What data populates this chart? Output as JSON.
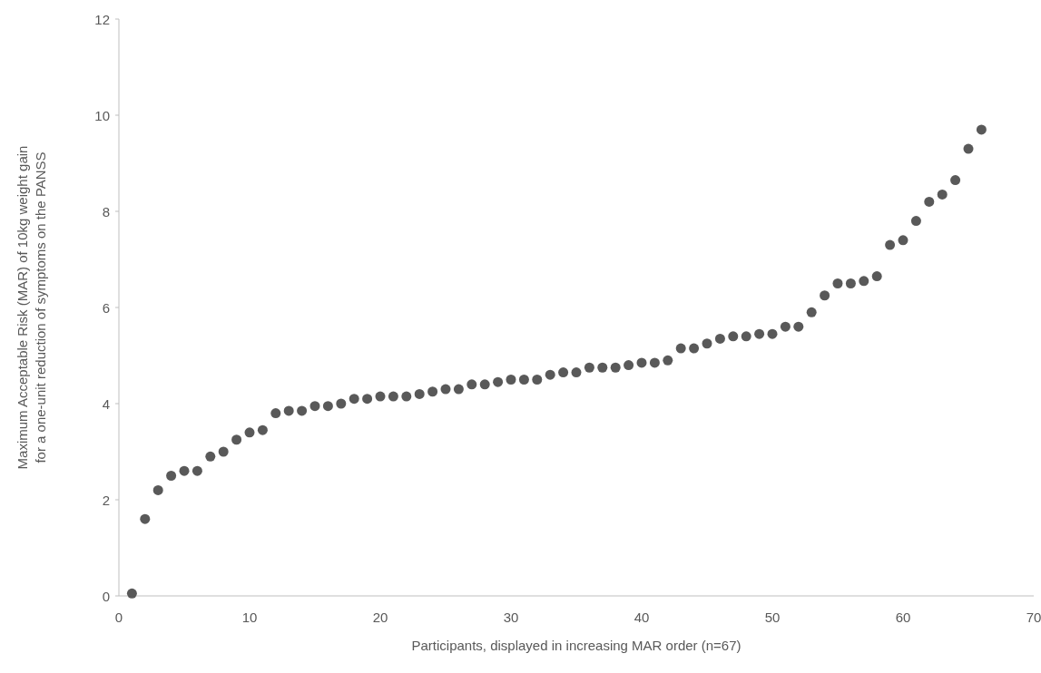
{
  "chart_data": {
    "type": "scatter",
    "xlabel": "Participants, displayed in increasing MAR order (n=67)",
    "ylabel": "Maximum Acceptable Risk (MAR) of 10kg weight gain\nfor a one-unit reduction of symptoms on the PANSS",
    "x": [
      1,
      2,
      3,
      4,
      5,
      6,
      7,
      8,
      9,
      10,
      11,
      12,
      13,
      14,
      15,
      16,
      17,
      18,
      19,
      20,
      21,
      22,
      23,
      24,
      25,
      26,
      27,
      28,
      29,
      30,
      31,
      32,
      33,
      34,
      35,
      36,
      37,
      38,
      39,
      40,
      41,
      42,
      43,
      44,
      45,
      46,
      47,
      48,
      49,
      50,
      51,
      52,
      53,
      54,
      55,
      56,
      57,
      58,
      59,
      60,
      61,
      62,
      63,
      64,
      65,
      66
    ],
    "values": [
      0.05,
      1.6,
      2.2,
      2.5,
      2.6,
      2.6,
      2.9,
      3.0,
      3.25,
      3.4,
      3.45,
      3.8,
      3.85,
      3.85,
      3.95,
      3.95,
      4.0,
      4.1,
      4.1,
      4.15,
      4.15,
      4.15,
      4.2,
      4.25,
      4.3,
      4.3,
      4.4,
      4.4,
      4.45,
      4.5,
      4.5,
      4.5,
      4.6,
      4.65,
      4.65,
      4.75,
      4.75,
      4.75,
      4.8,
      4.85,
      4.85,
      4.9,
      5.15,
      5.15,
      5.25,
      5.35,
      5.4,
      5.4,
      5.45,
      5.45,
      5.6,
      5.6,
      5.9,
      6.25,
      6.5,
      6.5,
      6.55,
      6.65,
      7.3,
      7.4,
      7.8,
      8.2,
      8.35,
      8.65,
      9.3,
      9.7
    ],
    "color": "#595959",
    "marker": "circle",
    "xlim": [
      0,
      70
    ],
    "xticks": [
      0,
      10,
      20,
      30,
      40,
      50,
      60,
      70
    ],
    "ylim": [
      0,
      12
    ],
    "yticks": [
      0,
      2,
      4,
      6,
      8,
      10,
      12
    ],
    "grid": false,
    "legend": false
  }
}
